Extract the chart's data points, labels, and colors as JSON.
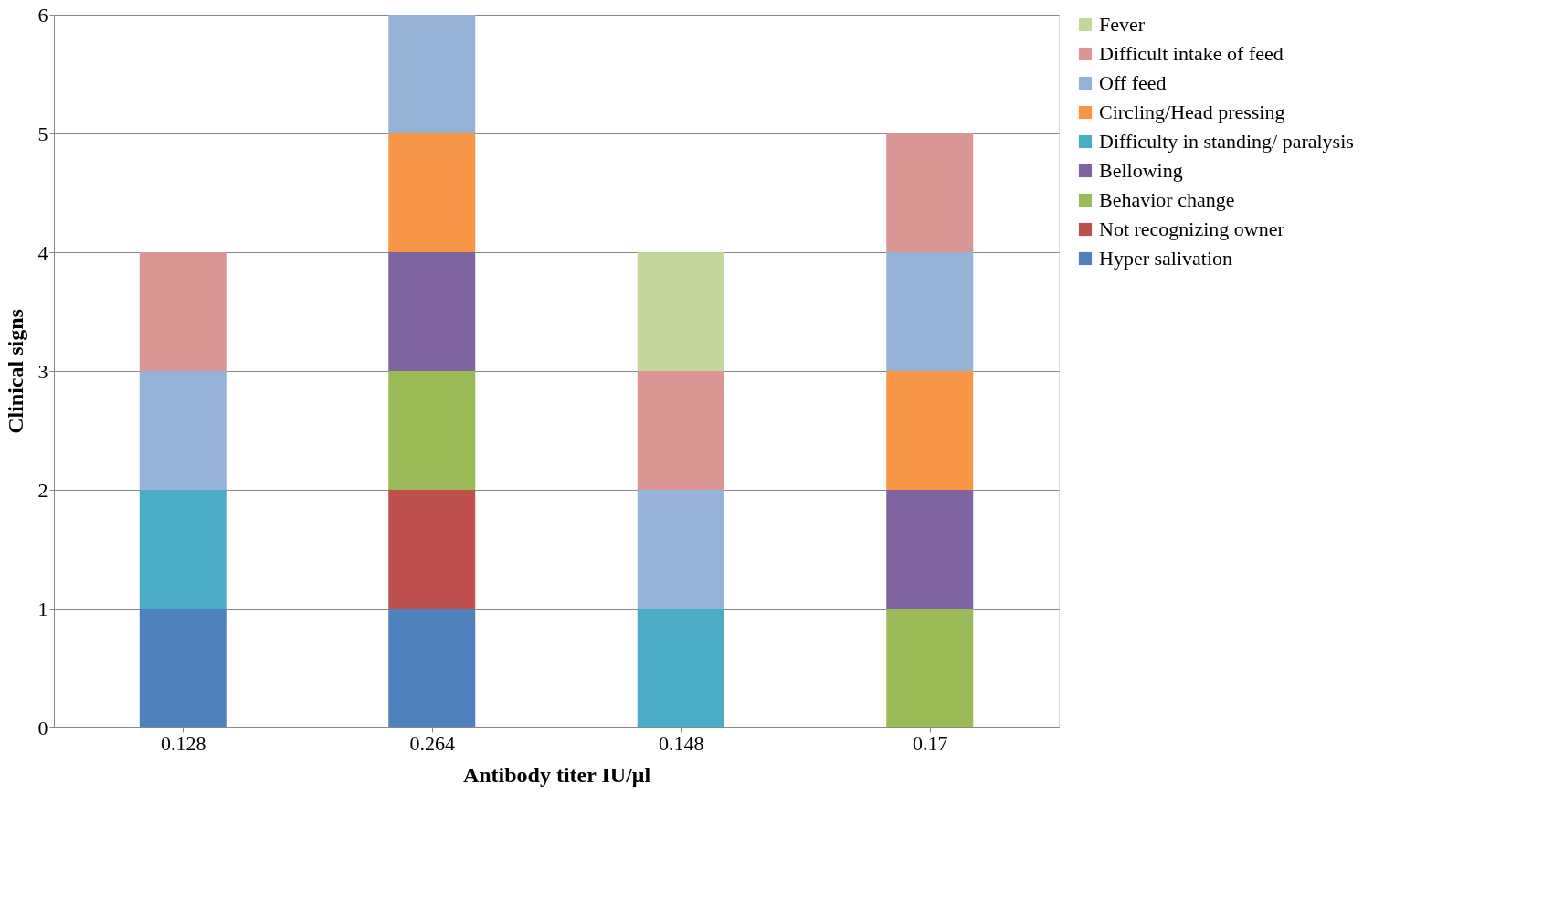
{
  "chart_data": {
    "type": "bar",
    "stacked": true,
    "xlabel": "Antibody titer IU/μl",
    "ylabel": "Clinical signs",
    "categories": [
      "0.128",
      "0.264",
      "0.148",
      "0.17"
    ],
    "series": [
      {
        "name": "Hyper salivation",
        "color": "#4f81bd",
        "values": [
          1,
          1,
          null,
          null
        ]
      },
      {
        "name": "Not recognizing owner",
        "color": "#c0504d",
        "values": [
          null,
          1,
          null,
          null
        ]
      },
      {
        "name": "Behavior change",
        "color": "#9bbb59",
        "values": [
          null,
          1,
          null,
          1
        ]
      },
      {
        "name": "Bellowing",
        "color": "#8064a2",
        "values": [
          null,
          1,
          null,
          1
        ]
      },
      {
        "name": "Difficulty in standing/ paralysis",
        "color": "#4bacc6",
        "values": [
          1,
          null,
          1,
          null
        ]
      },
      {
        "name": "Circling/Head pressing",
        "color": "#f79646",
        "values": [
          null,
          1,
          null,
          1
        ]
      },
      {
        "name": "Off feed",
        "color": "#95b3d7",
        "values": [
          1,
          1,
          1,
          1
        ]
      },
      {
        "name": "Difficult intake of feed",
        "color": "#d99694",
        "values": [
          1,
          null,
          1,
          1
        ]
      },
      {
        "name": "Fever",
        "color": "#c3d69b",
        "values": [
          null,
          null,
          1,
          null
        ]
      }
    ],
    "ylim": [
      0,
      6
    ],
    "yticks": [
      0,
      1,
      2,
      3,
      4,
      5,
      6
    ],
    "grid": "y",
    "legend": "right"
  }
}
